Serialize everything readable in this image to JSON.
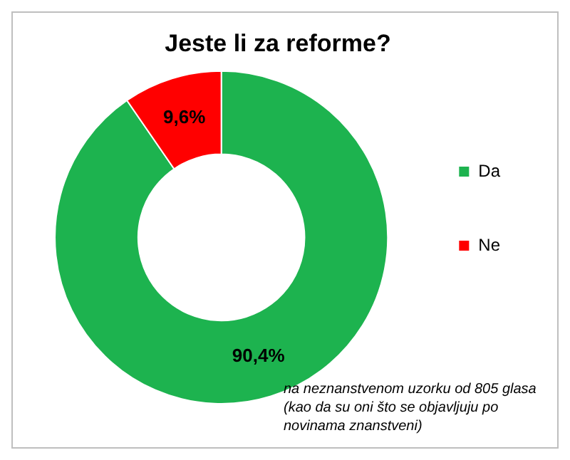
{
  "chart_data": {
    "type": "donut",
    "title": "Jeste li za reforme?",
    "categories": [
      "Da",
      "Ne"
    ],
    "values": [
      90.4,
      9.6
    ],
    "value_labels": [
      "90,4%",
      "9,6%"
    ],
    "colors": [
      "#1db34f",
      "#ff0000"
    ],
    "legend": "right",
    "annotations": [
      "na neznanstvenom uzorku od 805 glasa (kao da su oni što se objavljuju po novinama znanstveni)"
    ]
  }
}
